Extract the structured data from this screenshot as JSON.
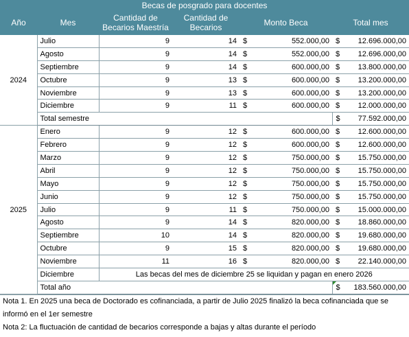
{
  "title": "Becas de posgrado para docentes",
  "headers": {
    "year": "Año",
    "month": "Mes",
    "masters": "Cantidad de Becarios Maestría",
    "scholars": "Cantidad de Becarios",
    "amount": "Monto Beca",
    "total": "Total mes"
  },
  "currency_symbol": "$",
  "years": [
    {
      "year": "2024",
      "rows": [
        {
          "month": "Julio",
          "masters": "9",
          "scholars": "14",
          "amount": "552.000,00",
          "total": "12.696.000,00"
        },
        {
          "month": "Agosto",
          "masters": "9",
          "scholars": "14",
          "amount": "552.000,00",
          "total": "12.696.000,00"
        },
        {
          "month": "Septiembre",
          "masters": "9",
          "scholars": "14",
          "amount": "600.000,00",
          "total": "13.800.000,00"
        },
        {
          "month": "Octubre",
          "masters": "9",
          "scholars": "13",
          "amount": "600.000,00",
          "total": "13.200.000,00"
        },
        {
          "month": "Noviembre",
          "masters": "9",
          "scholars": "13",
          "amount": "600.000,00",
          "total": "13.200.000,00"
        },
        {
          "month": "Diciembre",
          "masters": "9",
          "scholars": "11",
          "amount": "600.000,00",
          "total": "12.000.000,00"
        }
      ],
      "summary_label": "Total semestre",
      "summary_total": "77.592.000,00"
    },
    {
      "year": "2025",
      "rows": [
        {
          "month": "Enero",
          "masters": "9",
          "scholars": "12",
          "amount": "600.000,00",
          "total": "12.600.000,00"
        },
        {
          "month": "Febrero",
          "masters": "9",
          "scholars": "12",
          "amount": "600.000,00",
          "total": "12.600.000,00"
        },
        {
          "month": "Marzo",
          "masters": "9",
          "scholars": "12",
          "amount": "750.000,00",
          "total": "15.750.000,00"
        },
        {
          "month": "Abril",
          "masters": "9",
          "scholars": "12",
          "amount": "750.000,00",
          "total": "15.750.000,00"
        },
        {
          "month": "Mayo",
          "masters": "9",
          "scholars": "12",
          "amount": "750.000,00",
          "total": "15.750.000,00"
        },
        {
          "month": "Junio",
          "masters": "9",
          "scholars": "12",
          "amount": "750.000,00",
          "total": "15.750.000,00"
        },
        {
          "month": "Julio",
          "masters": "9",
          "scholars": "11",
          "amount": "750.000,00",
          "total": "15.000.000,00"
        },
        {
          "month": "Agosto",
          "masters": "9",
          "scholars": "14",
          "amount": "820.000,00",
          "total": "18.860.000,00"
        },
        {
          "month": "Septiembre",
          "masters": "10",
          "scholars": "14",
          "amount": "820.000,00",
          "total": "19.680.000,00"
        },
        {
          "month": "Octubre",
          "masters": "9",
          "scholars": "15",
          "amount": "820.000,00",
          "total": "19.680.000,00"
        },
        {
          "month": "Noviembre",
          "masters": "11",
          "scholars": "16",
          "amount": "820.000,00",
          "total": "22.140.000,00"
        }
      ],
      "december_row": {
        "month": "Diciembre",
        "note": "Las becas del mes de diciembre 25 se liquidan y pagan en enero 2026"
      },
      "summary_label": "Total año",
      "summary_total": "183.560.000,00"
    }
  ],
  "notes": [
    "Nota 1. En 2025 una beca de Doctorado es cofinanciada, a partir de Julio 2025 finalizó la beca cofinanciada que se informó en el 1er semestre",
    "Nota 2: La fluctuación de cantidad de becarios corresponde a bajas y altas durante el período"
  ],
  "colors": {
    "header_bg": "#4e8a9c",
    "header_text": "#ffffff",
    "grid_line": "#8aa0a8",
    "comment_marker": "#2e8b2e"
  }
}
